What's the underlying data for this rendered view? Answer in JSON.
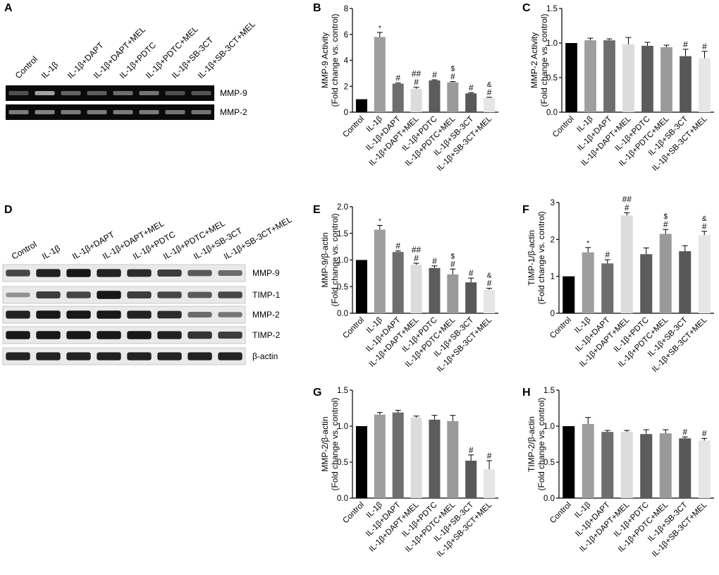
{
  "panel_letters": {
    "A": "A",
    "B": "B",
    "C": "C",
    "D": "D",
    "E": "E",
    "F": "F",
    "G": "G",
    "H": "H"
  },
  "groups": [
    "Control",
    "IL-1β",
    "IL-1β+DAPT",
    "IL-1β+DAPT+MEL",
    "IL-1β+PDTC",
    "IL-1β+PDTC+MEL",
    "IL-1β+SB-3CT",
    "IL-1β+SB-3CT+MEL"
  ],
  "bar_colors": [
    "#000000",
    "#9e9e9e",
    "#6e6e6e",
    "#dcdcdc",
    "#5c5c5c",
    "#9a9a9a",
    "#585858",
    "#e6e6e6"
  ],
  "gel_A": {
    "lane_labels": [
      "Control",
      "IL-1β",
      "IL-1β+DAPT",
      "IL-1β+DAPT+MEL",
      "IL-1β+PDTC",
      "IL-1β+PDTC+MEL",
      "IL-1β+SB-3CT",
      "IL-1β+SB-3CT+MEL"
    ],
    "rows": [
      {
        "label": "MMP-9",
        "intensity": [
          0.25,
          0.8,
          0.4,
          0.35,
          0.45,
          0.5,
          0.25,
          0.3
        ]
      },
      {
        "label": "MMP-2",
        "intensity": [
          0.55,
          0.6,
          0.55,
          0.55,
          0.55,
          0.55,
          0.5,
          0.5
        ]
      }
    ]
  },
  "blot_D": {
    "lane_labels": [
      "Control",
      "IL-1β",
      "IL-1β+DAPT",
      "IL-1β+DAPT+MEL",
      "IL-1β+PDTC",
      "IL-1β+PDTC+MEL",
      "IL-1β+SB-3CT",
      "IL-1β+SB-3CT+MEL"
    ],
    "rows": [
      {
        "label": "MMP-9",
        "intensity": [
          0.7,
          0.9,
          0.95,
          0.9,
          0.85,
          0.75,
          0.6,
          0.5
        ]
      },
      {
        "label": "TIMP-1",
        "intensity": [
          0.3,
          0.75,
          0.7,
          0.95,
          0.75,
          0.7,
          0.6,
          0.7
        ]
      },
      {
        "label": "MMP-2",
        "intensity": [
          0.9,
          0.95,
          0.95,
          0.95,
          0.9,
          0.85,
          0.5,
          0.45
        ]
      },
      {
        "label": "TIMP-2",
        "intensity": [
          0.95,
          0.95,
          0.95,
          0.95,
          0.95,
          0.9,
          0.8,
          0.75
        ]
      },
      {
        "label": "β-actin",
        "intensity": [
          0.9,
          0.9,
          0.9,
          0.9,
          0.9,
          0.9,
          0.9,
          0.9
        ]
      }
    ]
  },
  "chart_data": [
    {
      "panel": "B",
      "type": "bar",
      "ylabel": "MMP-9 Activity",
      "ylabel2": "(Fold change vs. control)",
      "ylim": [
        0,
        8
      ],
      "yticks": [
        "0",
        "2",
        "4",
        "6",
        "8"
      ],
      "values": [
        1.0,
        5.8,
        2.2,
        1.8,
        2.45,
        2.3,
        1.45,
        1.1
      ],
      "errors": [
        0.0,
        0.35,
        0.05,
        0.12,
        0.05,
        0.06,
        0.05,
        0.05
      ],
      "annotations": [
        [],
        [
          "*"
        ],
        [
          "#"
        ],
        [
          "##",
          "#"
        ],
        [
          "#"
        ],
        [
          "$",
          "#"
        ],
        [
          "#"
        ],
        [
          "&",
          "#"
        ]
      ]
    },
    {
      "panel": "C",
      "type": "bar",
      "ylabel": "MMP-2 Activity",
      "ylabel2": "(Fold change vs. control)",
      "ylim": [
        0,
        1.5
      ],
      "yticks": [
        "0.0",
        "0.5",
        "1.0",
        "1.5"
      ],
      "values": [
        1.0,
        1.04,
        1.04,
        0.98,
        0.96,
        0.94,
        0.81,
        0.78
      ],
      "errors": [
        0.0,
        0.03,
        0.02,
        0.1,
        0.05,
        0.03,
        0.1,
        0.1
      ],
      "annotations": [
        [],
        [],
        [],
        [],
        [],
        [],
        [
          "#"
        ],
        [
          "#"
        ]
      ]
    },
    {
      "panel": "E",
      "type": "bar",
      "ylabel": "MMP-9/β-actin",
      "ylabel2": "(Fold change vs. control)",
      "ylim": [
        0,
        2
      ],
      "yticks": [
        "0.0",
        "0.5",
        "1.0",
        "1.5",
        "2.0"
      ],
      "values": [
        1.0,
        1.57,
        1.15,
        0.91,
        0.85,
        0.73,
        0.58,
        0.44
      ],
      "errors": [
        0.0,
        0.08,
        0.02,
        0.03,
        0.04,
        0.1,
        0.08,
        0.03
      ],
      "annotations": [
        [],
        [
          "*"
        ],
        [
          "#"
        ],
        [
          "##",
          "#"
        ],
        [
          "#"
        ],
        [
          "$",
          "#"
        ],
        [
          "#"
        ],
        [
          "&",
          "#"
        ]
      ]
    },
    {
      "panel": "F",
      "type": "bar",
      "ylabel": "TIMP-1/β-actin",
      "ylabel2": "(Fold change vs. control)",
      "ylim": [
        0,
        3
      ],
      "yticks": [
        "0",
        "1",
        "2",
        "3"
      ],
      "values": [
        1.0,
        1.65,
        1.35,
        2.65,
        1.6,
        2.15,
        1.68,
        2.12
      ],
      "errors": [
        0.0,
        0.13,
        0.1,
        0.07,
        0.17,
        0.12,
        0.15,
        0.1
      ],
      "annotations": [
        [],
        [
          "*"
        ],
        [
          "#"
        ],
        [
          "##",
          "#"
        ],
        [],
        [
          "$",
          "#"
        ],
        [],
        [
          "&",
          "#"
        ]
      ]
    },
    {
      "panel": "G",
      "type": "bar",
      "ylabel": "MMP-2/β-actin",
      "ylabel2": "(Fold change vs. control)",
      "ylim": [
        0,
        1.5
      ],
      "yticks": [
        "0.0",
        "0.5",
        "1.0",
        "1.5"
      ],
      "values": [
        1.0,
        1.16,
        1.19,
        1.12,
        1.09,
        1.07,
        0.52,
        0.4
      ],
      "errors": [
        0.0,
        0.03,
        0.03,
        0.02,
        0.06,
        0.08,
        0.08,
        0.12
      ],
      "annotations": [
        [],
        [],
        [],
        [],
        [],
        [],
        [
          "#"
        ],
        [
          "#"
        ]
      ]
    },
    {
      "panel": "H",
      "type": "bar",
      "ylabel": "TIMP-2/β-actin",
      "ylabel2": "(Fold change vs. control)",
      "ylim": [
        0,
        1.5
      ],
      "yticks": [
        "0.0",
        "0.5",
        "1.0",
        "1.5"
      ],
      "values": [
        1.0,
        1.03,
        0.92,
        0.92,
        0.89,
        0.9,
        0.83,
        0.8
      ],
      "errors": [
        0.0,
        0.09,
        0.02,
        0.02,
        0.06,
        0.05,
        0.02,
        0.03
      ],
      "annotations": [
        [],
        [],
        [],
        [],
        [],
        [],
        [
          "#"
        ],
        [
          "#"
        ]
      ]
    }
  ]
}
